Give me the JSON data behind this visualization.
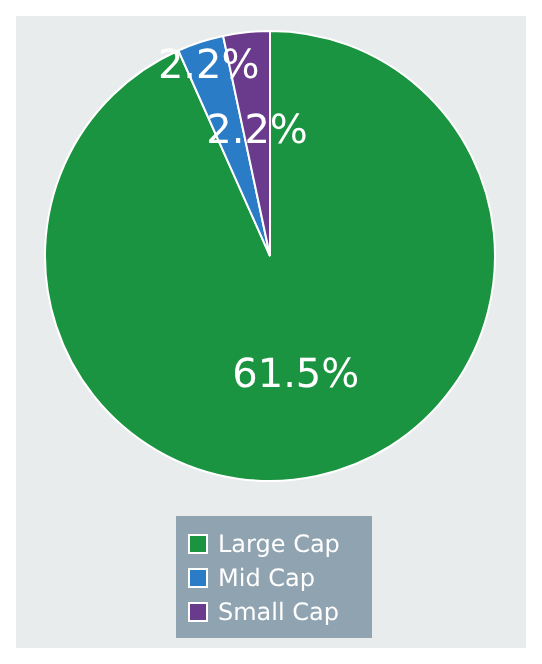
{
  "chart_data": {
    "type": "pie",
    "categories": [
      "Large Cap",
      "Mid Cap",
      "Small Cap"
    ],
    "values": [
      61.5,
      2.2,
      2.2
    ],
    "colors": [
      "#1a9440",
      "#2a7cc6",
      "#6a3a8c"
    ],
    "value_labels": [
      "61.5%",
      "2.2%",
      "2.2%"
    ],
    "legend": "bottom"
  }
}
